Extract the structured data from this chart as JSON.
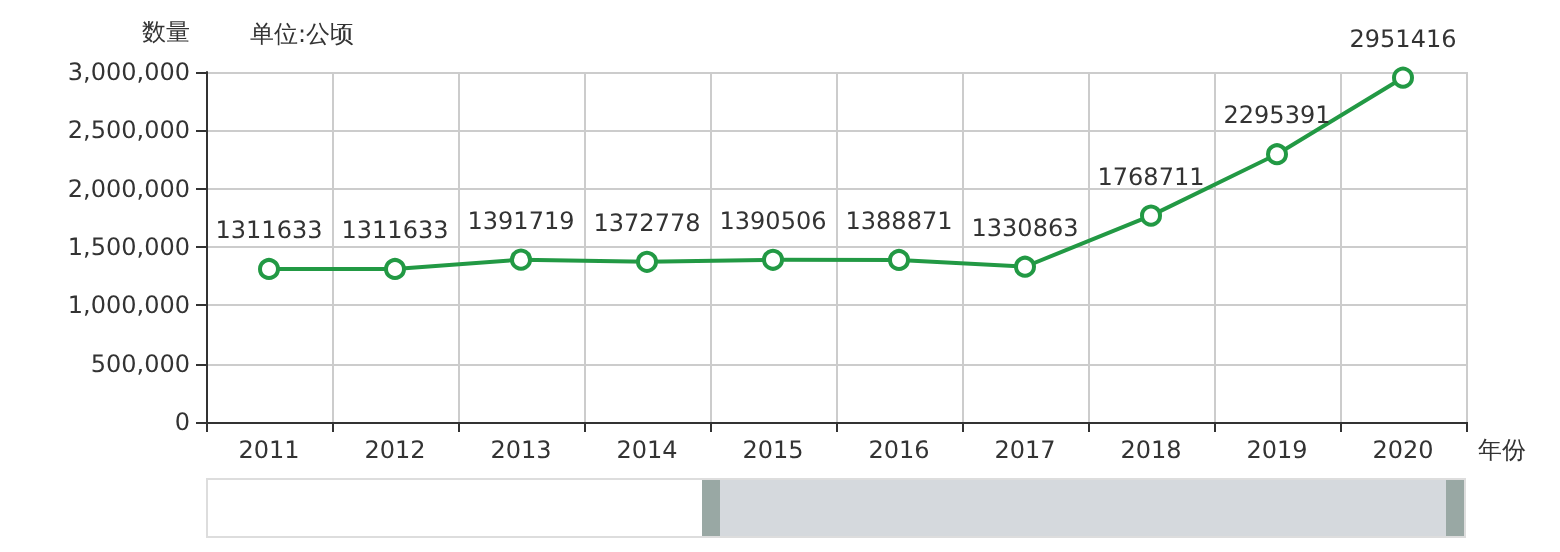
{
  "chart_data": {
    "type": "line",
    "ylabel": "数量",
    "xlabel": "年份",
    "annotations": [
      "单位:公顷"
    ],
    "categories": [
      "2011",
      "2012",
      "2013",
      "2014",
      "2015",
      "2016",
      "2017",
      "2018",
      "2019",
      "2020"
    ],
    "series": [
      {
        "color": "#229944",
        "values": [
          1311633,
          1311633,
          1391719,
          1372778,
          1390506,
          1388871,
          1330863,
          1768711,
          2295391,
          2951416
        ]
      }
    ],
    "ylim": [
      0,
      3000000
    ],
    "yticks": [
      0,
      {
        "value": 500000,
        "label": "500,000"
      },
      {
        "value": 1000000,
        "label": "1,000,000"
      },
      {
        "value": 1500000,
        "label": "1,500,000"
      },
      {
        "value": 2000000,
        "label": "2,000,000"
      },
      {
        "value": 2500000,
        "label": "2,500,000"
      },
      {
        "value": 3000000,
        "label": "3,000,000"
      }
    ],
    "grid": true,
    "marker": "circle",
    "line_style": "solid",
    "data_labels": true
  }
}
